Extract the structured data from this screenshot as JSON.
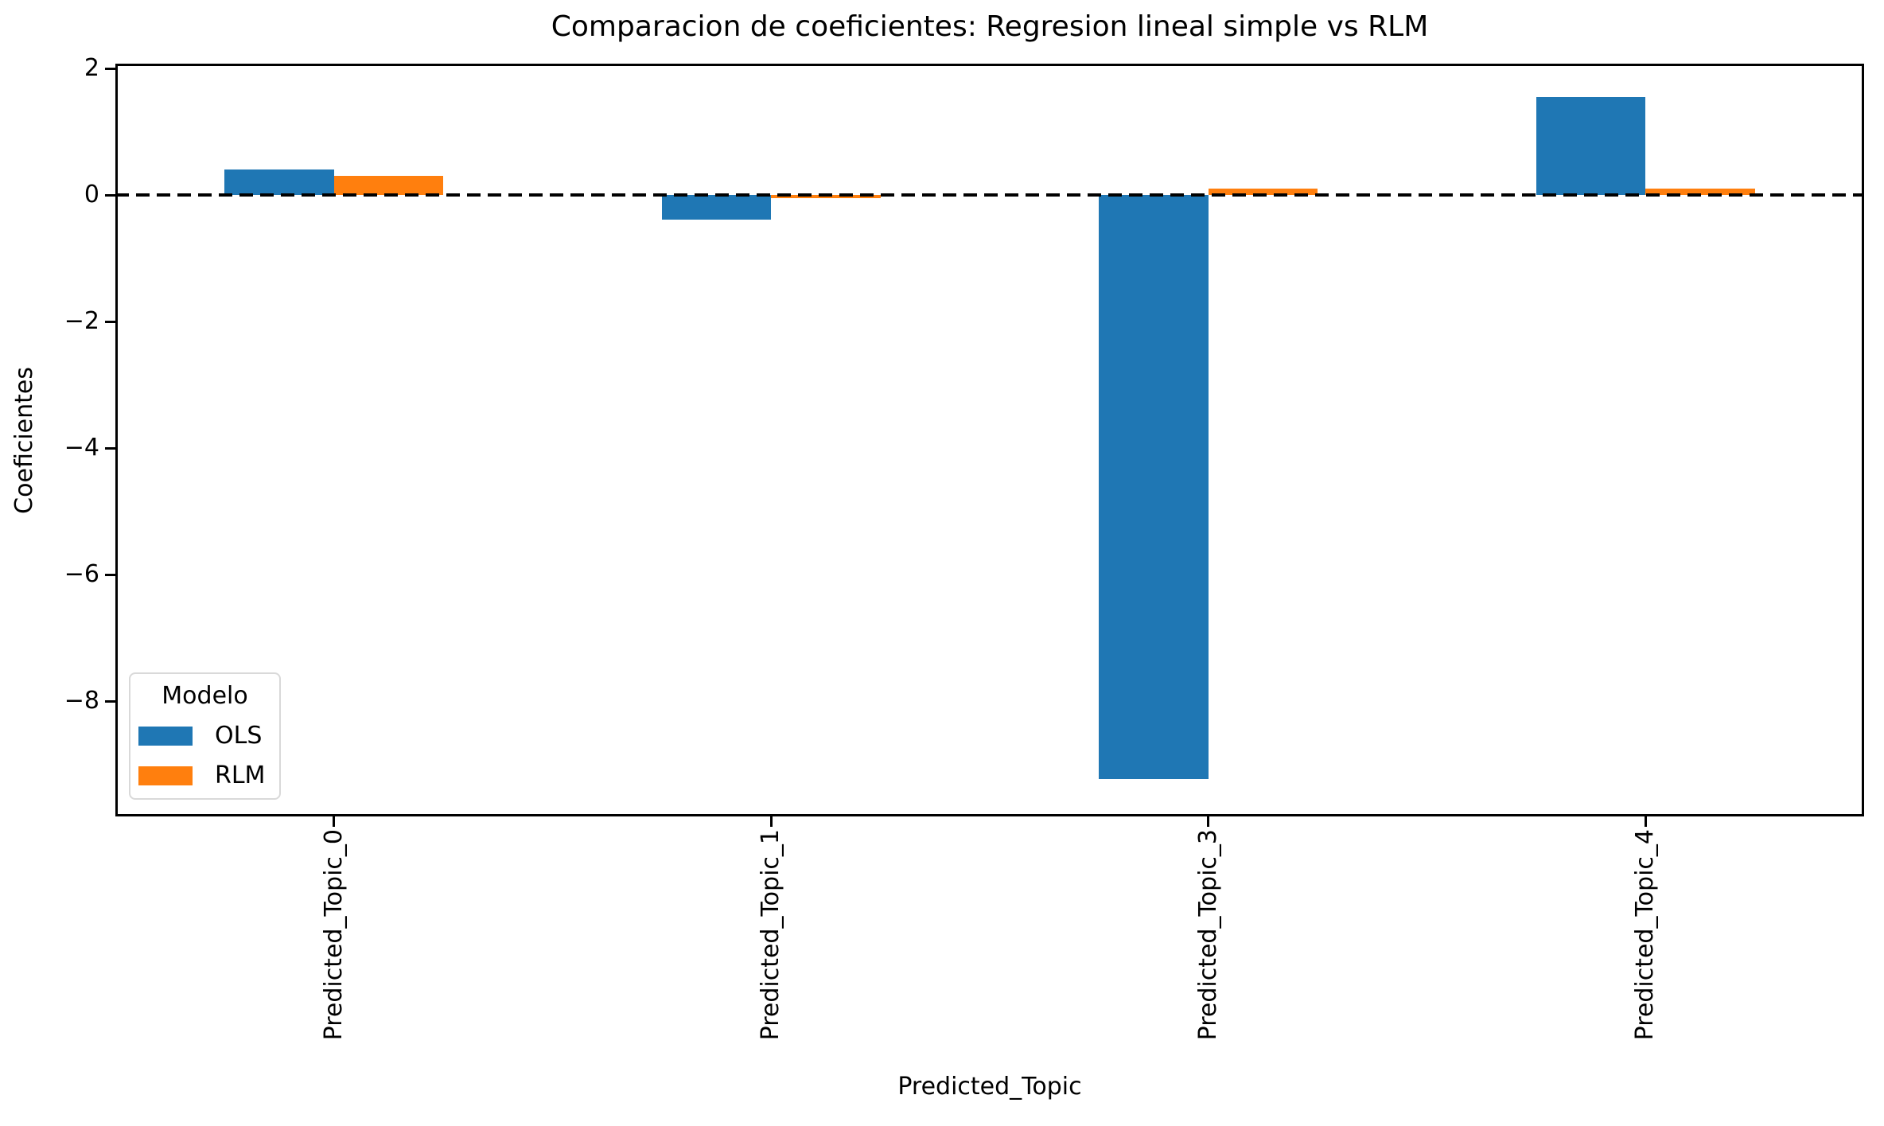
{
  "figure": {
    "background": "#ffffff",
    "axis_color": "#000000"
  },
  "chart_data": {
    "type": "bar",
    "title": "Comparacion de coeficientes: Regresion lineal simple vs RLM",
    "xlabel": "Predicted_Topic",
    "ylabel": "Coeficientes",
    "categories": [
      "Predicted_Topic_0",
      "Predicted_Topic_1",
      "Predicted_Topic_3",
      "Predicted_Topic_4"
    ],
    "series": [
      {
        "name": "OLS",
        "color": "#1f77b4",
        "values": [
          0.41,
          -0.39,
          -9.23,
          1.55
        ]
      },
      {
        "name": "RLM",
        "color": "#ff7f0e",
        "values": [
          0.31,
          -0.04,
          0.1,
          0.11
        ]
      }
    ],
    "legend": {
      "title": "Modelo",
      "position": "lower left"
    },
    "ylim": [
      -9.82,
      2.08
    ],
    "yticks": [
      {
        "value": 2,
        "label": "2"
      },
      {
        "value": 0,
        "label": "0"
      },
      {
        "value": -2,
        "label": "−2"
      },
      {
        "value": -4,
        "label": "−4"
      },
      {
        "value": -6,
        "label": "−6"
      },
      {
        "value": -8,
        "label": "−8"
      }
    ],
    "zero_line": {
      "value": 0,
      "style": "dashed",
      "color": "#000000"
    },
    "grid": false,
    "bar_width_fraction": 0.25,
    "x_tick_rotation_deg": 90
  }
}
